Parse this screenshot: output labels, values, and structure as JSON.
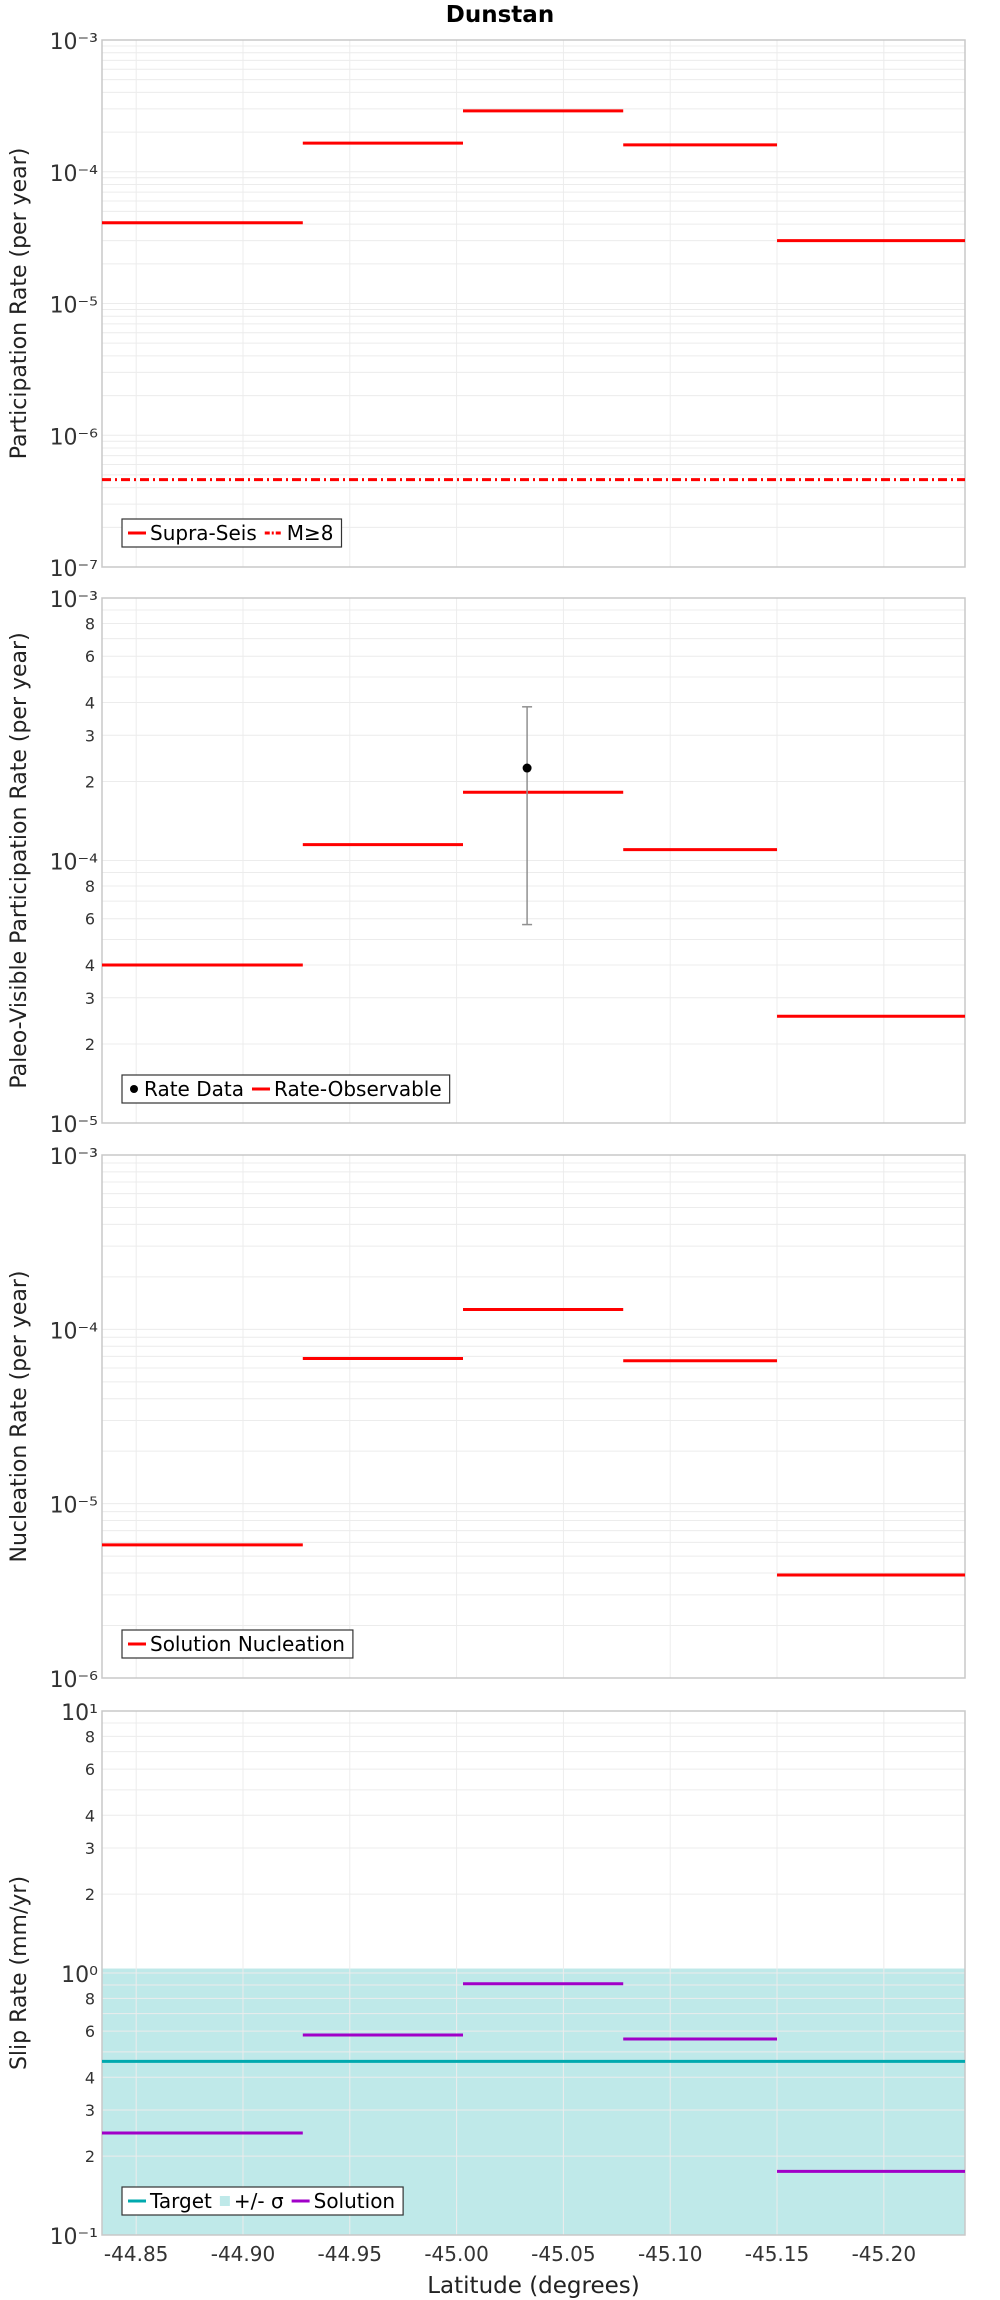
{
  "title": "Dunstan",
  "colors": {
    "red": "#ff0000",
    "magenta": "#a000c8",
    "teal": "#00a9ae",
    "band": "#bfe9e9",
    "grid": "#ececec",
    "frame": "#c8c8c8",
    "error_bar": "#909090"
  },
  "chart_data": [
    {
      "type": "line",
      "title": "Dunstan",
      "xlabel": "",
      "ylabel": "Participation Rate (per year)",
      "yscale": "log",
      "xlim": [
        -44.834,
        -45.238
      ],
      "ylim": [
        1e-07,
        0.001
      ],
      "series": [
        {
          "name": "Supra-Seis",
          "style": "steps",
          "color": "#ff0000",
          "segments": [
            {
              "x0": -44.834,
              "x1": -44.928,
              "y": 4.1e-05
            },
            {
              "x0": -44.928,
              "x1": -45.003,
              "y": 0.000165
            },
            {
              "x0": -45.003,
              "x1": -45.078,
              "y": 0.00029
            },
            {
              "x0": -45.078,
              "x1": -45.15,
              "y": 0.00016
            },
            {
              "x0": -45.15,
              "x1": -45.238,
              "y": 3e-05
            }
          ]
        },
        {
          "name": "M≥8",
          "style": "dashdot",
          "color": "#ff0000",
          "segments": [
            {
              "x0": -44.834,
              "x1": -45.238,
              "y": 4.6e-07
            }
          ]
        }
      ],
      "legend": {
        "position": "bottom-left",
        "entries": [
          {
            "label": "Supra-Seis",
            "kind": "line",
            "color": "#ff0000"
          },
          {
            "label": "M≥8",
            "kind": "dashdot",
            "color": "#ff0000"
          }
        ]
      }
    },
    {
      "type": "line",
      "xlabel": "",
      "ylabel": "Paleo-Visible Participation Rate (per year)",
      "yscale": "log",
      "xlim": [
        -44.834,
        -45.238
      ],
      "ylim": [
        1e-05,
        0.001
      ],
      "series": [
        {
          "name": "Rate-Observable",
          "style": "steps",
          "color": "#ff0000",
          "segments": [
            {
              "x0": -44.834,
              "x1": -44.928,
              "y": 4e-05
            },
            {
              "x0": -44.928,
              "x1": -45.003,
              "y": 0.000115
            },
            {
              "x0": -45.003,
              "x1": -45.078,
              "y": 0.000182
            },
            {
              "x0": -45.078,
              "x1": -45.15,
              "y": 0.00011
            },
            {
              "x0": -45.15,
              "x1": -45.238,
              "y": 2.55e-05
            }
          ]
        }
      ],
      "points": [
        {
          "name": "Rate Data",
          "x": -45.033,
          "y": 0.000225,
          "ylow": 5.7e-05,
          "yhigh": 0.000385
        }
      ],
      "legend": {
        "position": "bottom-left",
        "entries": [
          {
            "label": "Rate Data",
            "kind": "dot",
            "color": "#000000"
          },
          {
            "label": "Rate-Observable",
            "kind": "line",
            "color": "#ff0000"
          }
        ]
      }
    },
    {
      "type": "line",
      "xlabel": "",
      "ylabel": "Nucleation Rate (per year)",
      "yscale": "log",
      "xlim": [
        -44.834,
        -45.238
      ],
      "ylim": [
        1e-06,
        0.001
      ],
      "series": [
        {
          "name": "Solution Nucleation",
          "style": "steps",
          "color": "#ff0000",
          "segments": [
            {
              "x0": -44.834,
              "x1": -44.928,
              "y": 5.8e-06
            },
            {
              "x0": -44.928,
              "x1": -45.003,
              "y": 6.8e-05
            },
            {
              "x0": -45.003,
              "x1": -45.078,
              "y": 0.00013
            },
            {
              "x0": -45.078,
              "x1": -45.15,
              "y": 6.6e-05
            },
            {
              "x0": -45.15,
              "x1": -45.238,
              "y": 3.9e-06
            }
          ]
        }
      ],
      "legend": {
        "position": "bottom-left",
        "entries": [
          {
            "label": "Solution Nucleation",
            "kind": "line",
            "color": "#ff0000"
          }
        ]
      }
    },
    {
      "type": "line",
      "xlabel": "Latitude (degrees)",
      "ylabel": "Slip Rate (mm/yr)",
      "yscale": "log",
      "xlim": [
        -44.834,
        -45.238
      ],
      "ylim": [
        0.1,
        10
      ],
      "band": {
        "name": "+/- σ",
        "ylow": 0.1,
        "yhigh": 1.04,
        "color": "#bfe9e9"
      },
      "series": [
        {
          "name": "Target",
          "style": "solid",
          "color": "#00a9ae",
          "segments": [
            {
              "x0": -44.834,
              "x1": -45.238,
              "y": 0.46
            }
          ]
        },
        {
          "name": "Solution",
          "style": "steps",
          "color": "#a000c8",
          "segments": [
            {
              "x0": -44.834,
              "x1": -44.928,
              "y": 0.245
            },
            {
              "x0": -44.928,
              "x1": -45.003,
              "y": 0.58
            },
            {
              "x0": -45.003,
              "x1": -45.078,
              "y": 0.91
            },
            {
              "x0": -45.078,
              "x1": -45.15,
              "y": 0.56
            },
            {
              "x0": -45.15,
              "x1": -45.238,
              "y": 0.175
            }
          ]
        }
      ],
      "legend": {
        "position": "bottom-left",
        "entries": [
          {
            "label": "Target",
            "kind": "line",
            "color": "#00a9ae"
          },
          {
            "label": "+/- σ",
            "kind": "band",
            "color": "#bfe9e9"
          },
          {
            "label": "Solution",
            "kind": "line",
            "color": "#a000c8"
          }
        ]
      },
      "xticks": [
        -44.85,
        -44.9,
        -44.95,
        -45.0,
        -45.05,
        -45.1,
        -45.15,
        -45.2
      ],
      "xtick_labels": [
        "-44.85",
        "-44.90",
        "-44.95",
        "-45.00",
        "-45.05",
        "-45.10",
        "-45.15",
        "-45.20"
      ]
    }
  ]
}
